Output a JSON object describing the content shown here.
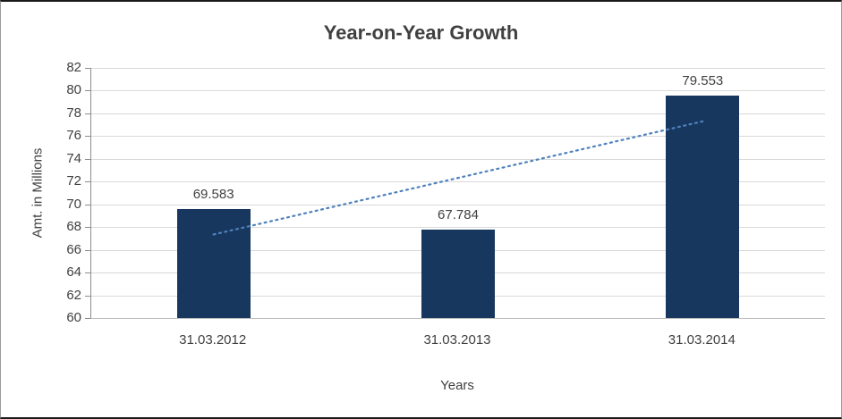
{
  "chart_data": {
    "type": "bar",
    "title": "Year-on-Year Growth",
    "xlabel": "Years",
    "ylabel": "Amt. in Millions",
    "categories": [
      "31.03.2012",
      "31.03.2013",
      "31.03.2014"
    ],
    "values": [
      69.583,
      67.784,
      79.553
    ],
    "value_labels": [
      "69.583",
      "67.784",
      "79.553"
    ],
    "ylim": [
      60,
      82
    ],
    "yticks": [
      60,
      62,
      64,
      66,
      68,
      70,
      72,
      74,
      76,
      78,
      80,
      82
    ],
    "grid": true,
    "legend": "none",
    "bar_color": "#17375E",
    "gridline_color": "#d9d9d9",
    "text_color": "#404040",
    "trendline": {
      "style": "dotted",
      "color": "#4F81BD",
      "start_value": 67.35,
      "end_value": 77.3
    }
  }
}
